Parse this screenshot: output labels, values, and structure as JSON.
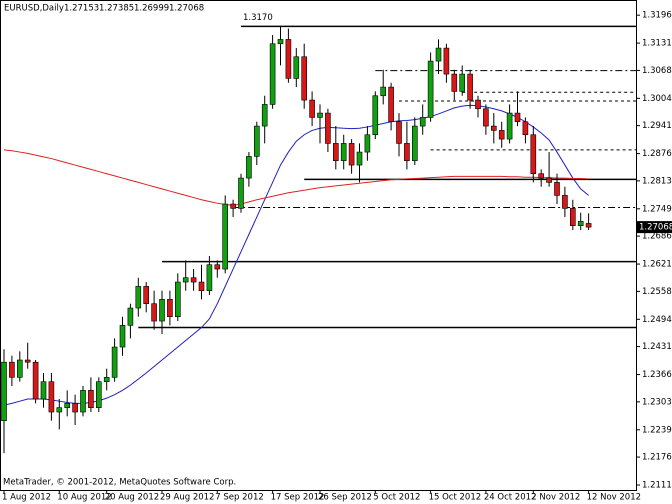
{
  "chart_data": {
    "type": "candlestick",
    "title": "EURUSD,Daily",
    "footer": "MetaTrader, © 2001-2012, MetaQuotes Software Corp.",
    "categories": [
      "1 Aug 2012",
      null,
      null,
      null,
      null,
      null,
      null,
      "10 Aug 2012",
      null,
      null,
      null,
      null,
      null,
      "20 Aug 2012",
      null,
      null,
      null,
      null,
      null,
      null,
      "29 Aug 2012",
      null,
      null,
      null,
      null,
      null,
      null,
      "7 Sep 2012",
      null,
      null,
      null,
      null,
      null,
      null,
      "17 Sep 2012",
      null,
      null,
      null,
      null,
      null,
      "26 Sep 2012",
      null,
      null,
      null,
      null,
      null,
      null,
      "5 Oct 2012",
      null,
      null,
      null,
      null,
      null,
      null,
      "15 Oct 2012",
      null,
      null,
      null,
      null,
      null,
      null,
      "24 Oct 2012",
      null,
      null,
      null,
      null,
      null,
      "2 Nov 2012",
      null,
      null,
      null,
      null,
      null,
      null,
      "12 Nov 2012"
    ],
    "open": [
      1.226,
      1.2395,
      1.236,
      1.24,
      1.2395,
      1.231,
      1.235,
      1.228,
      1.229,
      1.23,
      1.228,
      1.233,
      1.229,
      1.235,
      1.236,
      1.243,
      1.248,
      1.252,
      1.257,
      1.253,
      1.249,
      1.254,
      1.25,
      1.258,
      1.259,
      1.258,
      1.256,
      1.262,
      1.261,
      1.276,
      1.275,
      1.282,
      1.287,
      1.294,
      1.299,
      1.313,
      1.314,
      1.305,
      1.31,
      1.3,
      1.296,
      1.297,
      1.29,
      1.286,
      1.29,
      1.285,
      1.288,
      1.292,
      1.301,
      1.303,
      1.295,
      1.29,
      1.286,
      1.294,
      1.296,
      1.309,
      1.312,
      1.306,
      1.302,
      1.306,
      1.3,
      1.298,
      1.294,
      1.293,
      1.291,
      1.297,
      1.295,
      1.292,
      1.283,
      1.282,
      1.281,
      1.278,
      1.275,
      1.271,
      1.27153
    ],
    "high": [
      1.2425,
      1.241,
      1.242,
      1.244,
      1.24,
      1.237,
      1.237,
      1.231,
      1.233,
      1.232,
      1.234,
      1.236,
      1.236,
      1.238,
      1.245,
      1.25,
      1.253,
      1.259,
      1.258,
      1.256,
      1.256,
      1.256,
      1.26,
      1.263,
      1.261,
      1.262,
      1.264,
      1.263,
      1.278,
      1.277,
      1.283,
      1.288,
      1.295,
      1.301,
      1.315,
      1.317,
      1.3165,
      1.312,
      1.313,
      1.302,
      1.299,
      1.298,
      1.294,
      1.292,
      1.291,
      1.29,
      1.294,
      1.302,
      1.307,
      1.304,
      1.297,
      1.295,
      1.296,
      1.299,
      1.311,
      1.314,
      1.313,
      1.307,
      1.308,
      1.307,
      1.301,
      1.299,
      1.297,
      1.295,
      1.299,
      1.302,
      1.296,
      1.294,
      1.284,
      1.288,
      1.283,
      1.28,
      1.277,
      1.274,
      1.27385
    ],
    "low": [
      1.2185,
      1.234,
      1.235,
      1.238,
      1.23,
      1.229,
      1.226,
      1.224,
      1.227,
      1.225,
      1.227,
      1.228,
      1.228,
      1.233,
      1.235,
      1.241,
      1.245,
      1.25,
      1.251,
      1.247,
      1.246,
      1.248,
      1.249,
      1.256,
      1.256,
      1.254,
      1.255,
      1.259,
      1.26,
      1.273,
      1.274,
      1.28,
      1.285,
      1.29,
      1.298,
      1.308,
      1.304,
      1.303,
      1.298,
      1.294,
      1.29,
      1.288,
      1.284,
      1.284,
      1.283,
      1.281,
      1.286,
      1.291,
      1.299,
      1.293,
      1.287,
      1.284,
      1.285,
      1.292,
      1.295,
      1.306,
      1.304,
      1.3,
      1.301,
      1.298,
      1.296,
      1.292,
      1.29,
      1.289,
      1.29,
      1.294,
      1.29,
      1.281,
      1.28,
      1.28,
      1.276,
      1.273,
      1.27,
      1.27,
      1.26999
    ],
    "close": [
      1.2395,
      1.236,
      1.24,
      1.2395,
      1.231,
      1.235,
      1.228,
      1.229,
      1.23,
      1.228,
      1.233,
      1.229,
      1.235,
      1.236,
      1.243,
      1.248,
      1.252,
      1.257,
      1.253,
      1.249,
      1.254,
      1.25,
      1.258,
      1.259,
      1.258,
      1.256,
      1.262,
      1.261,
      1.276,
      1.275,
      1.282,
      1.287,
      1.294,
      1.299,
      1.313,
      1.314,
      1.305,
      1.31,
      1.3,
      1.296,
      1.297,
      1.29,
      1.286,
      1.29,
      1.285,
      1.288,
      1.292,
      1.301,
      1.303,
      1.295,
      1.29,
      1.286,
      1.294,
      1.296,
      1.309,
      1.312,
      1.306,
      1.302,
      1.306,
      1.3,
      1.298,
      1.294,
      1.293,
      1.291,
      1.297,
      1.295,
      1.292,
      1.283,
      1.282,
      1.281,
      1.278,
      1.275,
      1.271,
      1.272,
      1.27068
    ],
    "up_color": "#10a010",
    "down_color": "#d81818",
    "series": [
      {
        "color": "#2020c0",
        "values": [
          1.2296,
          1.23,
          1.2305,
          1.231,
          1.231,
          1.231,
          1.2308,
          1.2305,
          1.2302,
          1.23,
          1.23,
          1.2302,
          1.2306,
          1.2312,
          1.232,
          1.233,
          1.2342,
          1.2356,
          1.237,
          1.2385,
          1.24,
          1.2415,
          1.243,
          1.2445,
          1.246,
          1.2475,
          1.2495,
          1.253,
          1.257,
          1.261,
          1.265,
          1.269,
          1.273,
          1.277,
          1.281,
          1.285,
          1.288,
          1.2905,
          1.292,
          1.293,
          1.2935,
          1.2937,
          1.2936,
          1.2935,
          1.2934,
          1.2935,
          1.2938,
          1.2942,
          1.2946,
          1.295,
          1.2952,
          1.2953,
          1.2955,
          1.2958,
          1.2962,
          1.2968,
          1.2975,
          1.2982,
          1.2986,
          1.2988,
          1.2987,
          1.2984,
          1.298,
          1.2975,
          1.2968,
          1.296,
          1.295,
          1.2938,
          1.2924,
          1.2908,
          1.288,
          1.285,
          1.282,
          1.2795,
          1.278
        ]
      },
      {
        "color": "#e02020",
        "values": [
          1.2885,
          1.2883,
          1.288,
          1.2877,
          1.2873,
          1.2869,
          1.2865,
          1.286,
          1.2855,
          1.285,
          1.2845,
          1.284,
          1.2835,
          1.283,
          1.2825,
          1.282,
          1.2815,
          1.281,
          1.2805,
          1.28,
          1.2795,
          1.279,
          1.2785,
          1.278,
          1.2775,
          1.277,
          1.2766,
          1.2762,
          1.2759,
          1.2757,
          1.276,
          1.2765,
          1.277,
          1.2774,
          1.2778,
          1.2782,
          1.2786,
          1.2789,
          1.2792,
          1.2795,
          1.2798,
          1.28,
          1.2802,
          1.2804,
          1.2806,
          1.2808,
          1.281,
          1.2812,
          1.2814,
          1.2816,
          1.2817,
          1.2818,
          1.2819,
          1.282,
          1.2821,
          1.2822,
          1.2823,
          1.2824,
          1.2824,
          1.2824,
          1.2824,
          1.2824,
          1.2824,
          1.2824,
          1.2823,
          1.2823,
          1.2822,
          1.2822,
          1.2821,
          1.2821,
          1.282,
          1.282,
          1.2819,
          1.2819,
          1.2818
        ]
      }
    ],
    "hlines": [
      {
        "value": 1.317,
        "style": "solid",
        "from": 30,
        "label": "1.3170"
      },
      {
        "value": 1.2817,
        "style": "solid",
        "from": 38
      },
      {
        "value": 1.2627,
        "style": "solid",
        "from": 20
      },
      {
        "value": 1.2475,
        "style": "solid",
        "from": 17
      },
      {
        "value": 1.3068,
        "style": "dashdot",
        "from": 47
      },
      {
        "value": 1.2752,
        "style": "dashdot",
        "from": 29
      },
      {
        "value": 1.3018,
        "style": "dotted",
        "from": 58
      },
      {
        "value": 1.2998,
        "style": "dotted",
        "from": 50
      },
      {
        "value": 1.2885,
        "style": "dotted",
        "from": 54
      }
    ],
    "ylim": [
      1.21,
      1.3231
    ],
    "yticks": [
      {
        "value": 1.3196,
        "label": "1.31960"
      },
      {
        "value": 1.31315,
        "label": "1.31315"
      },
      {
        "value": 1.30685,
        "label": "1.30685"
      },
      {
        "value": 1.3004,
        "label": "1.30040"
      },
      {
        "value": 1.2941,
        "label": "1.29410"
      },
      {
        "value": 1.28765,
        "label": "1.28765"
      },
      {
        "value": 1.28135,
        "label": "1.28135"
      },
      {
        "value": 1.2749,
        "label": "1.27490"
      },
      {
        "value": 1.2686,
        "label": "1.26860"
      },
      {
        "value": 1.26215,
        "label": "1.26215"
      },
      {
        "value": 1.25585,
        "label": "1.25585"
      },
      {
        "value": 1.2494,
        "label": "1.24940"
      },
      {
        "value": 1.2431,
        "label": "1.24310"
      },
      {
        "value": 1.23665,
        "label": "1.23665"
      },
      {
        "value": 1.23035,
        "label": "1.23035"
      },
      {
        "value": 1.2239,
        "label": "1.22390"
      },
      {
        "value": 1.2176,
        "label": "1.21760"
      },
      {
        "value": 1.21115,
        "label": "1.21115"
      }
    ]
  }
}
